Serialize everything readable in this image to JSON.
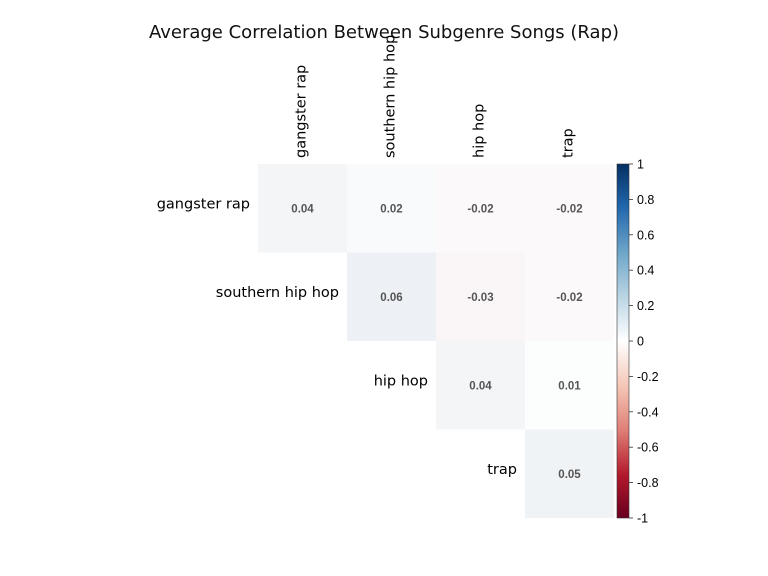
{
  "chart_data": {
    "type": "heatmap",
    "layout": "upper-triangle",
    "title": "Average Correlation Between Subgenre Songs (Rap)",
    "row_labels": [
      "gangster rap",
      "southern hip hop",
      "hip hop",
      "trap"
    ],
    "col_labels": [
      "gangster rap",
      "southern hip hop",
      "hip hop",
      "trap"
    ],
    "cells": [
      {
        "row": 0,
        "col": 0,
        "value": 0.04,
        "label": "0.04"
      },
      {
        "row": 0,
        "col": 1,
        "value": 0.02,
        "label": "0.02"
      },
      {
        "row": 0,
        "col": 2,
        "value": -0.02,
        "label": "-0.02"
      },
      {
        "row": 0,
        "col": 3,
        "value": -0.02,
        "label": "-0.02"
      },
      {
        "row": 1,
        "col": 1,
        "value": 0.06,
        "label": "0.06"
      },
      {
        "row": 1,
        "col": 2,
        "value": -0.03,
        "label": "-0.03"
      },
      {
        "row": 1,
        "col": 3,
        "value": -0.02,
        "label": "-0.02"
      },
      {
        "row": 2,
        "col": 2,
        "value": 0.04,
        "label": "0.04"
      },
      {
        "row": 2,
        "col": 3,
        "value": 0.01,
        "label": "0.01"
      },
      {
        "row": 3,
        "col": 3,
        "value": 0.05,
        "label": "0.05"
      }
    ],
    "color_scale": {
      "min": -1,
      "max": 1,
      "low_color": "#67001f",
      "mid_color": "#ffffff",
      "high_color": "#053061",
      "ticks": [
        "1",
        "0.8",
        "0.6",
        "0.4",
        "0.2",
        "0",
        "-0.2",
        "-0.4",
        "-0.6",
        "-0.8",
        "-1"
      ]
    },
    "legend_position": "right"
  }
}
